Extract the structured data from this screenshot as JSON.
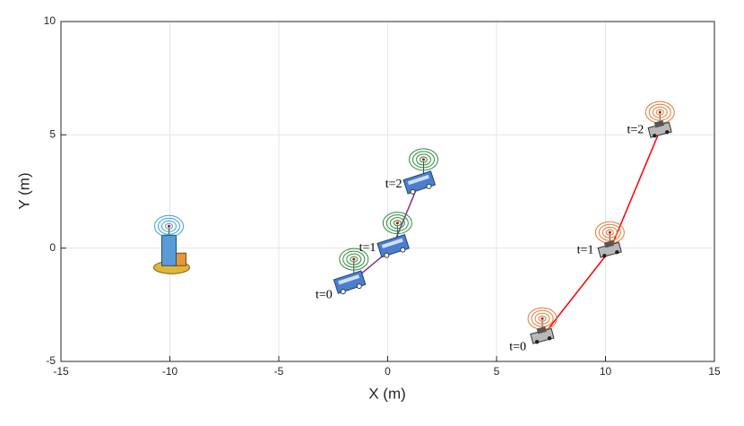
{
  "chart_data": {
    "type": "line",
    "xlabel": "X (m)",
    "ylabel": "Y (m)",
    "xlim": [
      -15,
      15
    ],
    "ylim": [
      -5,
      10
    ],
    "xticks": [
      -15,
      -10,
      -5,
      0,
      5,
      10,
      15
    ],
    "yticks": [
      -5,
      0,
      5,
      10
    ],
    "grid": true,
    "series": [
      {
        "color": "#7e2f8e",
        "marker": "bus",
        "x": [
          -1.8,
          0.2,
          1.4
        ],
        "y": [
          -1.6,
          0.0,
          2.8
        ],
        "point_labels": [
          "t=0",
          "t=1",
          "t=2"
        ]
      },
      {
        "color": "#ff0000",
        "marker": "car",
        "x": [
          7.1,
          10.2,
          12.5
        ],
        "y": [
          -3.9,
          -0.1,
          5.2
        ],
        "point_labels": [
          "t=0",
          "t=1",
          "t=2"
        ]
      }
    ],
    "base_station": {
      "x": -10,
      "y": -0.3
    }
  }
}
